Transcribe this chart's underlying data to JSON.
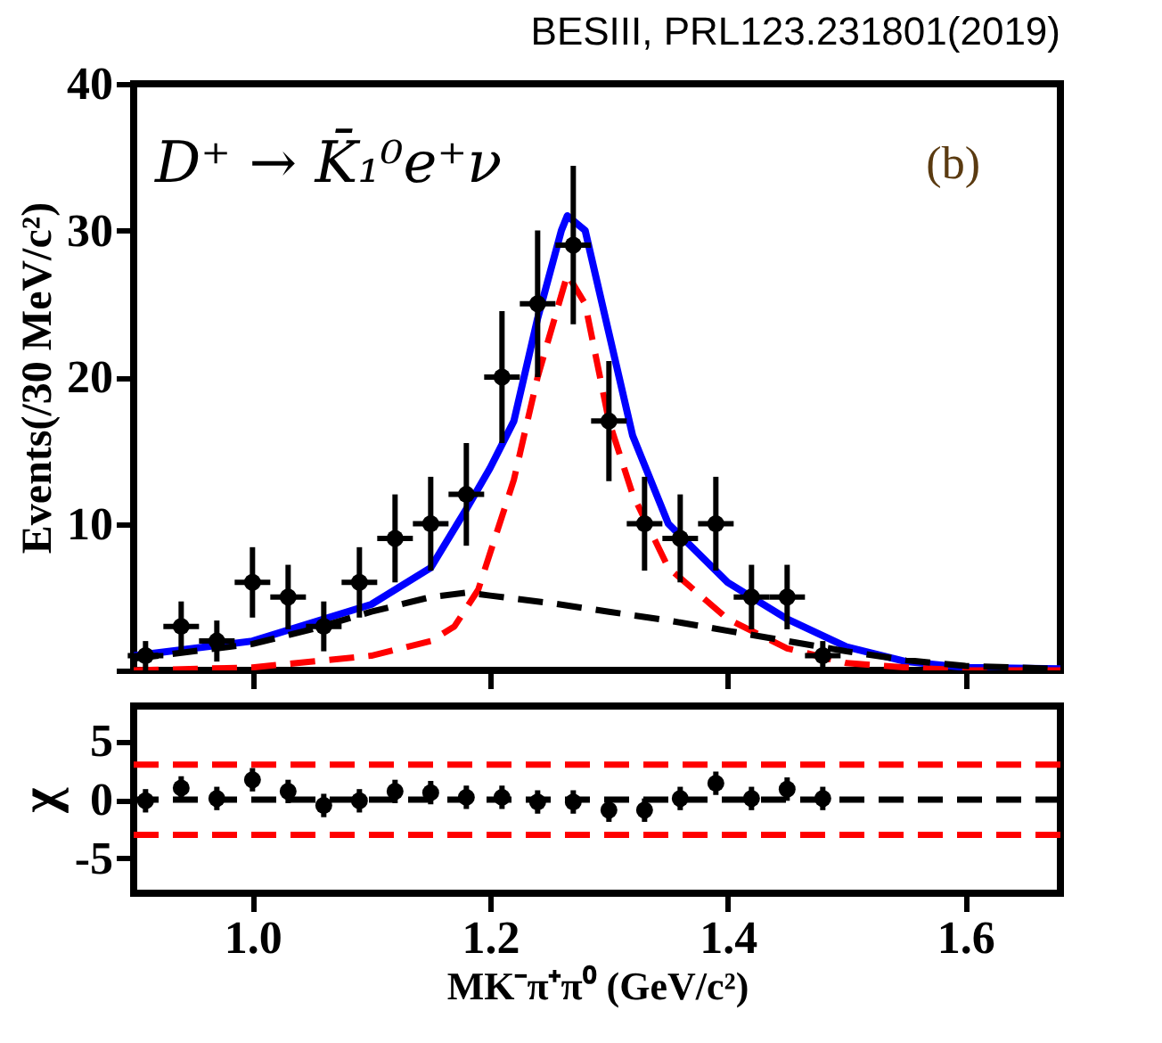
{
  "chart_data": [
    {
      "type": "scatter",
      "title": "BESIII, PRL123.231801(2019)",
      "ylabel": "Events(/30 MeV/c²)",
      "annotations": [
        "D⁺ → K̄₁⁰e⁺ν",
        "(b)"
      ],
      "xlim": [
        0.9,
        1.68
      ],
      "xticks": [
        {
          "value": 1.0,
          "label": null
        },
        {
          "value": 1.2,
          "label": null
        },
        {
          "value": 1.4,
          "label": null
        },
        {
          "value": 1.6,
          "label": null
        }
      ],
      "ylim": [
        0,
        40
      ],
      "yticks": [
        {
          "value": 0,
          "label": null
        },
        10,
        20,
        30,
        40
      ],
      "tick_labels": "y",
      "grid": false,
      "series": [
        {
          "type": "scatter",
          "color": "#000000",
          "marker": "circle",
          "x": [
            0.91,
            0.94,
            0.97,
            1.0,
            1.03,
            1.06,
            1.09,
            1.12,
            1.15,
            1.18,
            1.21,
            1.24,
            1.27,
            1.3,
            1.33,
            1.36,
            1.39,
            1.42,
            1.45,
            1.48
          ],
          "values": [
            1,
            3,
            2,
            6,
            5,
            3,
            6,
            9,
            10,
            12,
            20,
            25,
            29,
            17,
            10,
            9,
            10,
            5,
            5,
            1
          ],
          "errors": [
            1,
            1.7,
            1.4,
            2.4,
            2.2,
            1.7,
            2.4,
            3,
            3.2,
            3.5,
            4.5,
            5,
            5.4,
            4.1,
            3.2,
            3,
            3.2,
            2.2,
            2.2,
            1
          ],
          "xerrors": [
            0.015,
            0.015,
            0.015,
            0.015,
            0.015,
            0.015,
            0.015,
            0.015,
            0.015,
            0.015,
            0.015,
            0.015,
            0.015,
            0.015,
            0.015,
            0.015,
            0.015,
            0.015,
            0.015,
            0.015
          ]
        },
        {
          "type": "line",
          "color": "#0000ff",
          "line_style": "solid",
          "x": [
            0.9,
            1.0,
            1.1,
            1.15,
            1.18,
            1.2,
            1.22,
            1.24,
            1.26,
            1.265,
            1.28,
            1.3,
            1.32,
            1.35,
            1.4,
            1.45,
            1.5,
            1.55,
            1.6,
            1.68
          ],
          "values": [
            1,
            2,
            4.5,
            7,
            11,
            13.8,
            17,
            24,
            30,
            31,
            30,
            23,
            16,
            10,
            6,
            3.5,
            1.6,
            0.6,
            0.2,
            0.1
          ]
        },
        {
          "type": "line",
          "color": "#ff0000",
          "line_style": "dashed",
          "x": [
            0.9,
            1.0,
            1.1,
            1.15,
            1.17,
            1.19,
            1.22,
            1.24,
            1.265,
            1.28,
            1.3,
            1.32,
            1.35,
            1.4,
            1.45,
            1.5,
            1.55,
            1.6,
            1.68
          ],
          "values": [
            0,
            0.2,
            1,
            2,
            3,
            5.5,
            13,
            20,
            27,
            25,
            17,
            12,
            7,
            3.5,
            1.5,
            0.5,
            0.2,
            0,
            0
          ]
        },
        {
          "type": "line",
          "color": "#000000",
          "line_style": "dashed",
          "x": [
            0.9,
            1.0,
            1.05,
            1.1,
            1.15,
            1.18,
            1.2,
            1.25,
            1.3,
            1.35,
            1.4,
            1.45,
            1.5,
            1.55,
            1.6,
            1.68
          ],
          "values": [
            0.8,
            1.8,
            2.8,
            4,
            5,
            5.3,
            5.1,
            4.6,
            4,
            3.4,
            2.7,
            2,
            1.3,
            0.7,
            0.3,
            0.1
          ]
        }
      ]
    },
    {
      "type": "scatter",
      "xlabel": "MK⁻π⁺π⁰ (GeV/c²)",
      "ylabel": "χ",
      "xlim": [
        0.9,
        1.68
      ],
      "xticks": [
        {
          "value": 1.0,
          "label": "1.0"
        },
        1.2,
        1.4,
        1.6
      ],
      "ylim": [
        -8,
        8
      ],
      "yticks": [
        -5,
        0,
        5
      ],
      "grid": false,
      "series": [
        {
          "type": "scatter",
          "color": "#000000",
          "marker": "circle",
          "x": [
            0.91,
            0.94,
            0.97,
            1.0,
            1.03,
            1.06,
            1.09,
            1.12,
            1.15,
            1.18,
            1.21,
            1.24,
            1.27,
            1.3,
            1.33,
            1.36,
            1.39,
            1.42,
            1.45,
            1.48
          ],
          "values": [
            -0.1,
            1,
            0.1,
            1.7,
            0.7,
            -0.5,
            -0.1,
            0.7,
            0.6,
            0.2,
            0.2,
            -0.2,
            -0.2,
            -0.9,
            -0.9,
            0.1,
            1.4,
            0.1,
            0.9,
            0.1
          ],
          "errors": [
            1,
            1,
            1,
            1,
            1,
            1,
            1,
            1,
            1,
            1,
            1,
            1,
            1,
            1,
            1,
            1,
            1,
            1,
            1,
            1
          ]
        }
      ],
      "ref_lines": [
        {
          "axis": "y",
          "value": 0,
          "color": "#000000",
          "line_style": "dashed"
        },
        {
          "axis": "y",
          "value": 3,
          "color": "#ff0000",
          "line_style": "dashed"
        },
        {
          "axis": "y",
          "value": -3,
          "color": "#ff0000",
          "line_style": "dashed"
        }
      ]
    }
  ]
}
